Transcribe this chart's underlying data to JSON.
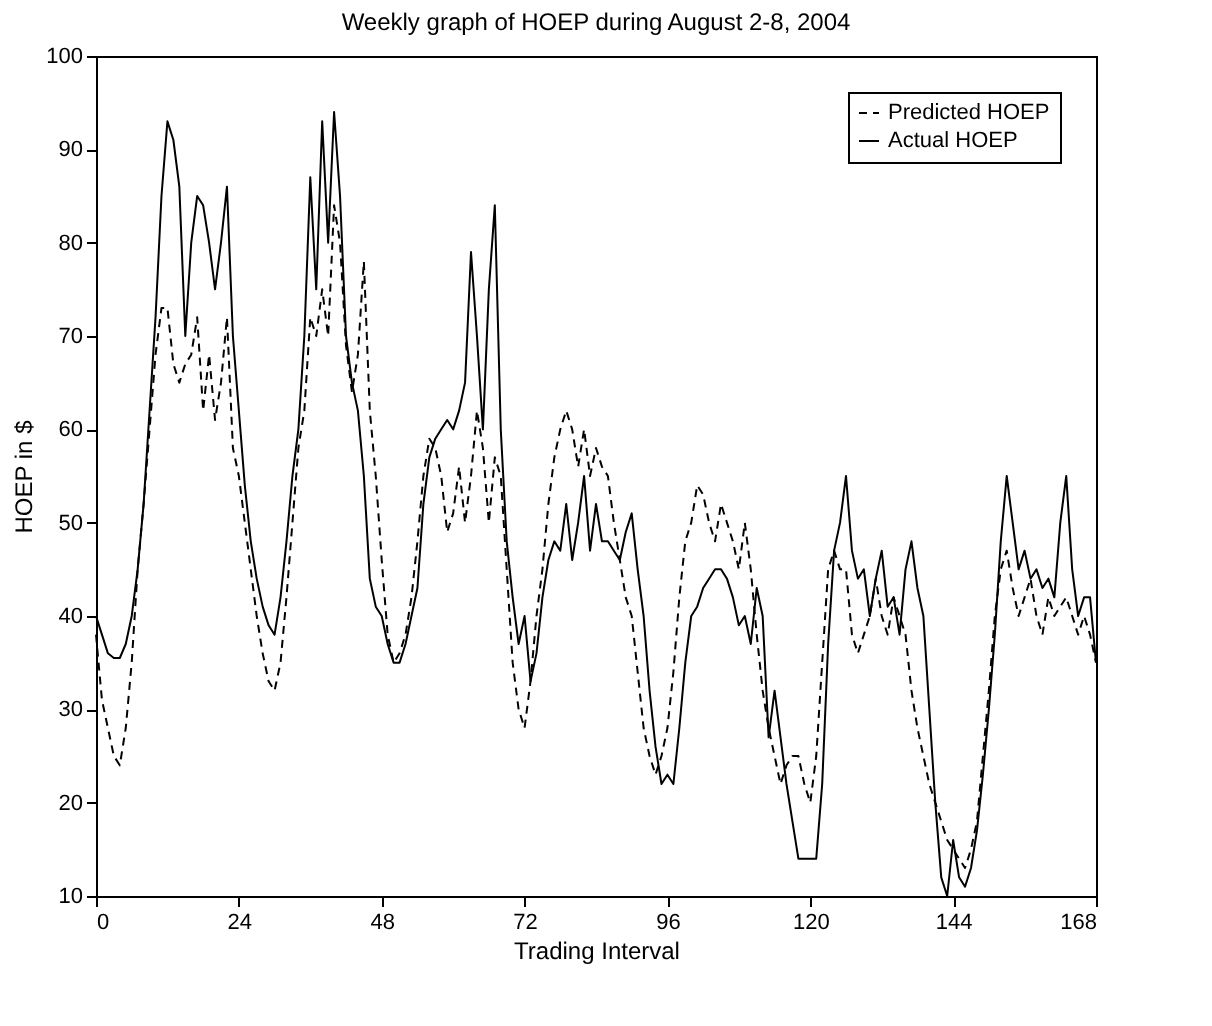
{
  "chart_data": {
    "type": "line",
    "title": "Weekly graph of HOEP during August 2-8, 2004",
    "xlabel": "Trading Interval",
    "ylabel": "HOEP in $",
    "x": [
      0,
      1,
      2,
      3,
      4,
      5,
      6,
      7,
      8,
      9,
      10,
      11,
      12,
      13,
      14,
      15,
      16,
      17,
      18,
      19,
      20,
      21,
      22,
      23,
      24,
      25,
      26,
      27,
      28,
      29,
      30,
      31,
      32,
      33,
      34,
      35,
      36,
      37,
      38,
      39,
      40,
      41,
      42,
      43,
      44,
      45,
      46,
      47,
      48,
      49,
      50,
      51,
      52,
      53,
      54,
      55,
      56,
      57,
      58,
      59,
      60,
      61,
      62,
      63,
      64,
      65,
      66,
      67,
      68,
      69,
      70,
      71,
      72,
      73,
      74,
      75,
      76,
      77,
      78,
      79,
      80,
      81,
      82,
      83,
      84,
      85,
      86,
      87,
      88,
      89,
      90,
      91,
      92,
      93,
      94,
      95,
      96,
      97,
      98,
      99,
      100,
      101,
      102,
      103,
      104,
      105,
      106,
      107,
      108,
      109,
      110,
      111,
      112,
      113,
      114,
      115,
      116,
      117,
      118,
      119,
      120,
      121,
      122,
      123,
      124,
      125,
      126,
      127,
      128,
      129,
      130,
      131,
      132,
      133,
      134,
      135,
      136,
      137,
      138,
      139,
      140,
      141,
      142,
      143,
      144,
      145,
      146,
      147,
      148,
      149,
      150,
      151,
      152,
      153,
      154,
      155,
      156,
      157,
      158,
      159,
      160,
      161,
      162,
      163,
      164,
      165,
      166,
      167,
      168
    ],
    "series": [
      {
        "name": "Predicted HOEP",
        "color": "#000000",
        "line_style": "dashed",
        "values": [
          38,
          31,
          28,
          25,
          24,
          28,
          35,
          45,
          52,
          60,
          68,
          73,
          73,
          67,
          65,
          67,
          68,
          72,
          62,
          68,
          61,
          65,
          72,
          58,
          55,
          50,
          45,
          40,
          36,
          33,
          32,
          35,
          42,
          50,
          58,
          62,
          72,
          70,
          75,
          70,
          84,
          80,
          69,
          64,
          68,
          78,
          62,
          55,
          46,
          38,
          35,
          36,
          38,
          42,
          48,
          55,
          59,
          58,
          55,
          49,
          51,
          56,
          50,
          55,
          62,
          58,
          50,
          57,
          55,
          45,
          35,
          30,
          28,
          33,
          40,
          45,
          52,
          57,
          60,
          62,
          60,
          56,
          60,
          55,
          58,
          56,
          55,
          50,
          46,
          42,
          40,
          34,
          28,
          25,
          23,
          25,
          28,
          34,
          42,
          48,
          50,
          54,
          53,
          50,
          48,
          52,
          50,
          48,
          45,
          50,
          45,
          38,
          32,
          28,
          25,
          22,
          24,
          25,
          25,
          22,
          20,
          25,
          35,
          45,
          47,
          45,
          45,
          38,
          36,
          38,
          40,
          44,
          40,
          38,
          42,
          40,
          38,
          32,
          28,
          25,
          22,
          20,
          18,
          16,
          15,
          14,
          13,
          15,
          18,
          25,
          32,
          40,
          45,
          47,
          43,
          40,
          42,
          44,
          40,
          38,
          42,
          40,
          41,
          42,
          40,
          38,
          40,
          38,
          35
        ]
      },
      {
        "name": "Actual HOEP",
        "color": "#000000",
        "line_style": "solid",
        "values": [
          40,
          38,
          36,
          35.5,
          35.5,
          37,
          40,
          45,
          52,
          62,
          72,
          85,
          93,
          91,
          86,
          70,
          80,
          85,
          84,
          80,
          75,
          80,
          86,
          70,
          62,
          54,
          48,
          44,
          41,
          39,
          38,
          42,
          48,
          55,
          60,
          70,
          87,
          75,
          93,
          80,
          94,
          85,
          70,
          65,
          62,
          55,
          44,
          41,
          40,
          37,
          35,
          35,
          37,
          40,
          43,
          52,
          57,
          59,
          60,
          61,
          60,
          62,
          65,
          79,
          70,
          60,
          75,
          84,
          60,
          48,
          42,
          37,
          40,
          33,
          36,
          42,
          46,
          48,
          47,
          52,
          46,
          50,
          55,
          47,
          52,
          48,
          48,
          47,
          46,
          49,
          51,
          45,
          40,
          32,
          26,
          22,
          23,
          22,
          28,
          35,
          40,
          41,
          43,
          44,
          45,
          45,
          44,
          42,
          39,
          40,
          37,
          43,
          40,
          27,
          32,
          27,
          22,
          18,
          14,
          14,
          14,
          14,
          22,
          37,
          47,
          50,
          55,
          47,
          44,
          45,
          40,
          44,
          47,
          41,
          42,
          38,
          45,
          48,
          43,
          40,
          30,
          20,
          12,
          10,
          16,
          12,
          11,
          13,
          17,
          23,
          30,
          38,
          48,
          55,
          50,
          45,
          47,
          44,
          45,
          43,
          44,
          42,
          50,
          55,
          45,
          40,
          42,
          42,
          35
        ]
      }
    ],
    "xlim": [
      0,
      168
    ],
    "xticks": [
      0,
      24,
      48,
      72,
      96,
      120,
      144,
      168
    ],
    "ylim": [
      10,
      100
    ],
    "yticks": [
      10,
      20,
      30,
      40,
      50,
      60,
      70,
      80,
      90,
      100
    ],
    "legend": "top right",
    "grid": false
  }
}
